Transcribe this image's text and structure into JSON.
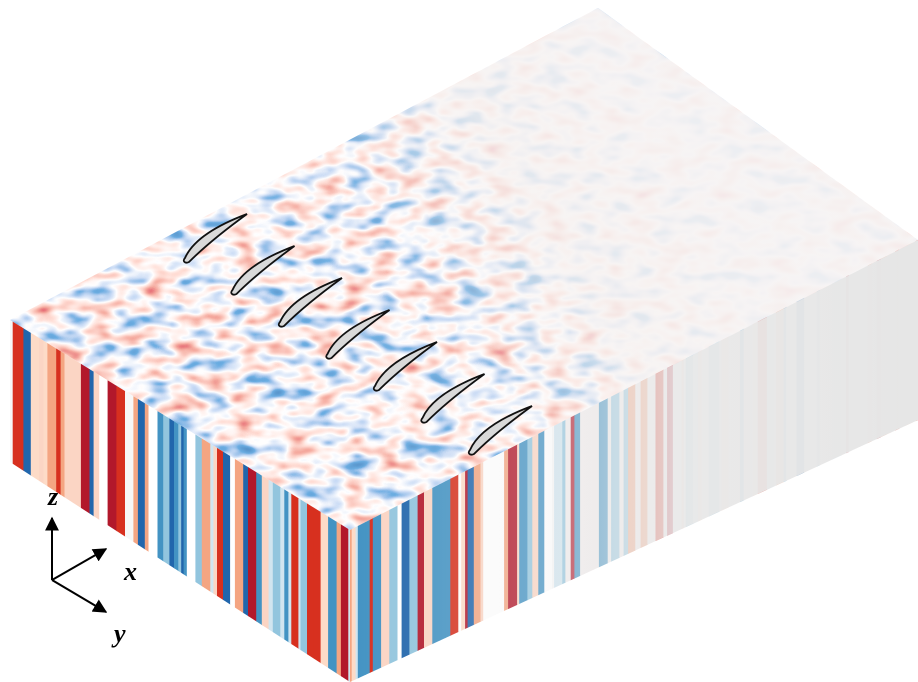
{
  "axes": {
    "z": "z",
    "x": "x",
    "y": "y"
  }
}
